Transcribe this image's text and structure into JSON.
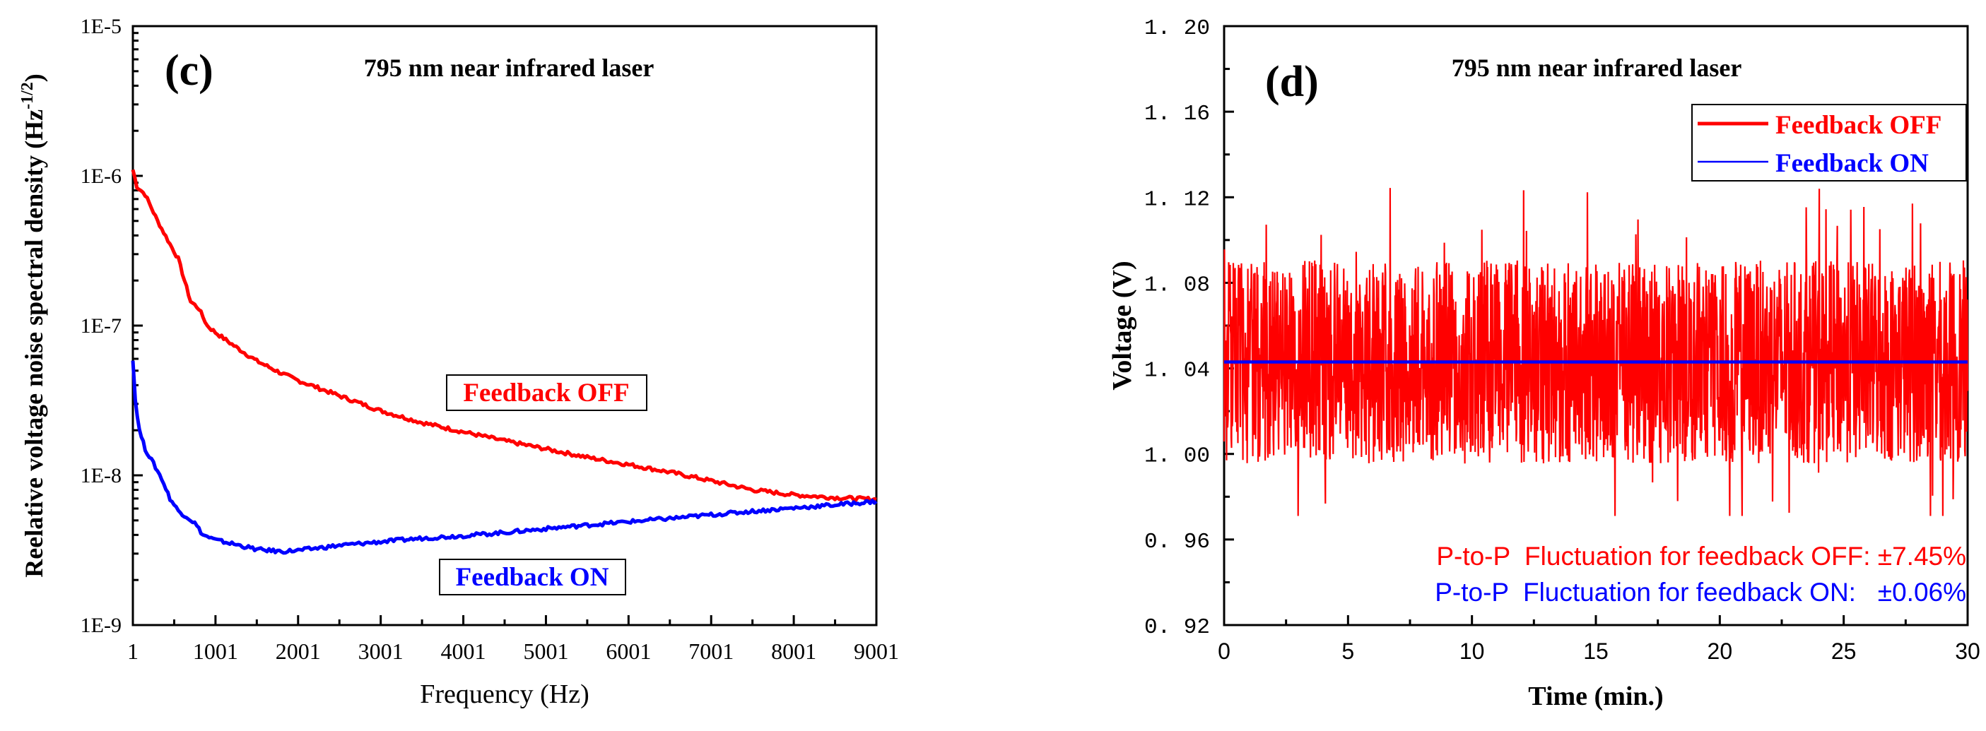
{
  "colors": {
    "off": "#ff0000",
    "on": "#0000ff",
    "axis": "#000000"
  },
  "chart_data": [
    {
      "type": "line",
      "panel_label": "(c)",
      "title": "795 nm near infrared laser",
      "xlabel": "Frequency  (Hz)",
      "ylabel_main": "Reelative voltage noise spectral density  (Hz",
      "ylabel_exp": "-1/2",
      "ylabel_close": ")",
      "xscale": "linear",
      "yscale": "log",
      "xlim": [
        1,
        9001
      ],
      "ylim": [
        1e-09,
        1e-05
      ],
      "xticks": [
        1,
        1001,
        2001,
        3001,
        4001,
        5001,
        6001,
        7001,
        8001,
        9001
      ],
      "xtick_labels": [
        "1",
        "1001",
        "2001",
        "3001",
        "4001",
        "5001",
        "6001",
        "7001",
        "8001",
        "9001"
      ],
      "yticks": [
        1e-09,
        1e-08,
        1e-07,
        1e-06,
        1e-05
      ],
      "ytick_labels": [
        "1E-9",
        "1E-8",
        "1E-7",
        "1E-6",
        "1E-5"
      ],
      "series": [
        {
          "name": "Feedback OFF",
          "color": "#ff0000",
          "x": [
            1,
            50,
            150,
            300,
            450,
            550,
            650,
            700,
            800,
            900,
            1000,
            1200,
            1500,
            1800,
            2000,
            2500,
            3000,
            3500,
            4000,
            4500,
            5000,
            5500,
            6000,
            6500,
            7000,
            7500,
            8000,
            8500,
            9001
          ],
          "y": [
            1.1e-06,
            8.5e-07,
            7.5e-07,
            5e-07,
            3.5e-07,
            2.8e-07,
            1.8e-07,
            1.45e-07,
            1.3e-07,
            1e-07,
            9e-08,
            7.5e-08,
            5.8e-08,
            4.8e-08,
            4.3e-08,
            3.4e-08,
            2.7e-08,
            2.25e-08,
            1.95e-08,
            1.7e-08,
            1.5e-08,
            1.32e-08,
            1.18e-08,
            1.05e-08,
            9.2e-09,
            8e-09,
            7.4e-09,
            7.1e-09,
            6.9e-09
          ]
        },
        {
          "name": "Feedback ON",
          "color": "#0000ff",
          "x": [
            1,
            30,
            80,
            150,
            250,
            350,
            450,
            550,
            650,
            750,
            850,
            1000,
            1200,
            1500,
            1800,
            2000,
            2500,
            3000,
            3500,
            4000,
            4500,
            5000,
            5500,
            6000,
            6500,
            7000,
            7500,
            8000,
            8500,
            9001
          ],
          "y": [
            6e-08,
            3.2e-08,
            2e-08,
            1.5e-08,
            1.2e-08,
            9.5e-09,
            7e-09,
            5.8e-09,
            5.3e-09,
            4.8e-09,
            4e-09,
            3.7e-09,
            3.5e-09,
            3.2e-09,
            3.1e-09,
            3.15e-09,
            3.4e-09,
            3.6e-09,
            3.8e-09,
            3.95e-09,
            4.15e-09,
            4.4e-09,
            4.65e-09,
            4.9e-09,
            5.15e-09,
            5.45e-09,
            5.75e-09,
            6.05e-09,
            6.35e-09,
            6.7e-09
          ]
        }
      ],
      "annotations": [
        {
          "text": "Feedback OFF",
          "color": "#ff0000",
          "boxed": true,
          "at_x": 3830,
          "at_y": 3.5e-08
        },
        {
          "text": "Feedback ON",
          "color": "#0000ff",
          "boxed": true,
          "at_x": 3650,
          "at_y": 2.2e-09
        }
      ]
    },
    {
      "type": "line",
      "panel_label": "(d)",
      "title": "795 nm near infrared laser",
      "xlabel": "Time  (min.)",
      "ylabel": "Voltage  (V)",
      "xlim": [
        0,
        30
      ],
      "ylim": [
        0.92,
        1.2
      ],
      "xticks": [
        0,
        5,
        10,
        15,
        20,
        25,
        30
      ],
      "xtick_labels": [
        "0",
        "5",
        "10",
        "15",
        "20",
        "25",
        "30"
      ],
      "yticks": [
        0.92,
        0.96,
        1.0,
        1.04,
        1.08,
        1.12,
        1.16,
        1.2
      ],
      "ytick_labels": [
        "0. 92",
        "0. 96",
        "1. 00",
        "1. 04",
        "1. 08",
        "1. 12",
        "1. 16",
        "1. 20"
      ],
      "series": [
        {
          "name": "Feedback OFF",
          "color": "#ff0000",
          "mean": 1.043,
          "band_min": 0.971,
          "band_max": 1.125,
          "typical_low": 0.995,
          "typical_high": 1.09
        },
        {
          "name": "Feedback ON",
          "color": "#0000ff",
          "x": [
            0,
            30
          ],
          "y": [
            1.043,
            1.043
          ]
        }
      ],
      "legend": {
        "placement": "top-right",
        "entries": [
          "Feedback OFF",
          "Feedback ON"
        ]
      },
      "annotations": [
        {
          "text": "P-to-P  Fluctuation for feedback OFF: ±7.45%",
          "color": "#ff0000"
        },
        {
          "text": "P-to-P  Fluctuation for feedback ON:   ±0.06%",
          "color": "#0000ff"
        }
      ]
    }
  ]
}
